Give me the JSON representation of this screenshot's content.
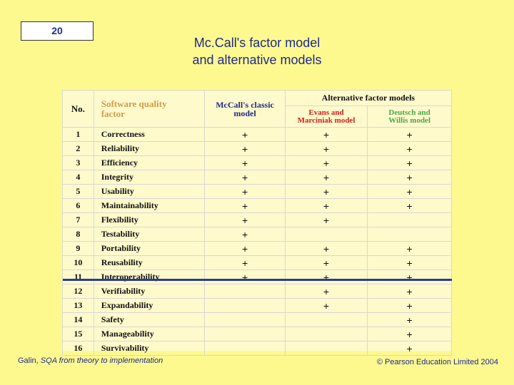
{
  "slide_number": "20",
  "title_line1": "Mc.Call's factor model",
  "title_line2": "and alternative models",
  "table": {
    "headers": {
      "no": "No.",
      "factor_line1": "Software quality",
      "factor_line2": "factor",
      "mccall_line1": "McCall's classic",
      "mccall_line2": "model",
      "alternative": "Alternative factor models",
      "evans_line1": "Evans and",
      "evans_line2": "Marciniak model",
      "deutsch_line1": "Deutsch and",
      "deutsch_line2": "Willis model"
    },
    "rows": [
      {
        "no": "1",
        "factor": "Correctness",
        "mccall": "+",
        "evans": "+",
        "deutsch": "+"
      },
      {
        "no": "2",
        "factor": "Reliability",
        "mccall": "+",
        "evans": "+",
        "deutsch": "+"
      },
      {
        "no": "3",
        "factor": "Efficiency",
        "mccall": "+",
        "evans": "+",
        "deutsch": "+"
      },
      {
        "no": "4",
        "factor": "Integrity",
        "mccall": "+",
        "evans": "+",
        "deutsch": "+"
      },
      {
        "no": "5",
        "factor": "Usability",
        "mccall": "+",
        "evans": "+",
        "deutsch": "+"
      },
      {
        "no": "6",
        "factor": "Maintainability",
        "mccall": "+",
        "evans": "+",
        "deutsch": "+"
      },
      {
        "no": "7",
        "factor": "Flexibility",
        "mccall": "+",
        "evans": "+",
        "deutsch": ""
      },
      {
        "no": "8",
        "factor": "Testability",
        "mccall": "+",
        "evans": "",
        "deutsch": ""
      },
      {
        "no": "9",
        "factor": "Portability",
        "mccall": "+",
        "evans": "+",
        "deutsch": "+"
      },
      {
        "no": "10",
        "factor": "Reusability",
        "mccall": "+",
        "evans": "+",
        "deutsch": "+"
      },
      {
        "no": "11",
        "factor": "Interoperability",
        "mccall": "+",
        "evans": "+",
        "deutsch": "+"
      },
      {
        "no": "12",
        "factor": "Verifiability",
        "mccall": "",
        "evans": "+",
        "deutsch": "+"
      },
      {
        "no": "13",
        "factor": "Expandability",
        "mccall": "",
        "evans": "+",
        "deutsch": "+"
      },
      {
        "no": "14",
        "factor": "Safety",
        "mccall": "",
        "evans": "",
        "deutsch": "+"
      },
      {
        "no": "15",
        "factor": "Manageability",
        "mccall": "",
        "evans": "",
        "deutsch": "+"
      },
      {
        "no": "16",
        "factor": "Survivability",
        "mccall": "",
        "evans": "",
        "deutsch": "+"
      }
    ]
  },
  "footer_author": "Galin, ",
  "footer_book": "SQA from theory to implementation",
  "footer_copyright": "© Pearson Education Limited 2004"
}
